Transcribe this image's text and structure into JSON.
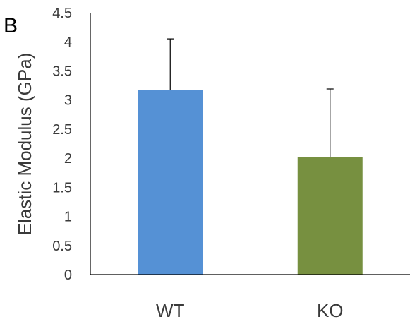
{
  "panel_label": "B",
  "chart_data": {
    "type": "bar",
    "title": "",
    "xlabel": "",
    "ylabel": "Elastic Modulus (GPa)",
    "ylim": [
      0,
      4.5
    ],
    "yticks": [
      "0",
      "0.5",
      "1",
      "1.5",
      "2",
      "2.5",
      "3",
      "3.5",
      "4",
      "4.5"
    ],
    "categories": [
      "WT",
      "KO"
    ],
    "values": [
      3.17,
      2.02
    ],
    "error_upper": [
      0.88,
      1.17
    ],
    "colors": [
      "#5591d5",
      "#779040"
    ],
    "grid": false,
    "legend": "none"
  }
}
